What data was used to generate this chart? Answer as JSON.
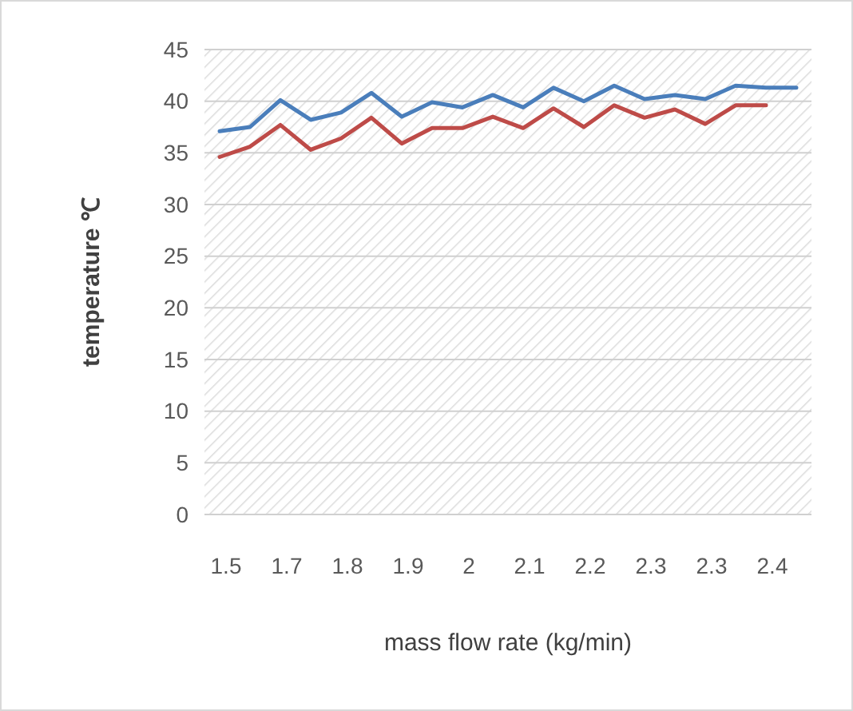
{
  "chart_data": {
    "type": "line",
    "xlabel": "mass flow rate (kg/min)",
    "ylabel": "temperature ℃",
    "categories": [
      "1.5",
      null,
      "1.7",
      null,
      "1.8",
      null,
      "1.9",
      null,
      "2",
      null,
      "2.1",
      null,
      "2.2",
      null,
      "2.3",
      null,
      "2.3",
      null,
      "2.4",
      null
    ],
    "series": [
      {
        "color": "#4a7ebb",
        "values": [
          37.1,
          37.5,
          40.1,
          38.2,
          38.9,
          40.8,
          38.5,
          39.9,
          39.4,
          40.6,
          39.4,
          41.3,
          40.0,
          41.5,
          40.2,
          40.6,
          40.2,
          41.5,
          41.3,
          41.3
        ]
      },
      {
        "color": "#be4b48",
        "values": [
          34.6,
          35.6,
          37.7,
          35.3,
          36.4,
          38.4,
          35.9,
          37.4,
          37.4,
          38.5,
          37.4,
          39.3,
          37.5,
          39.6,
          38.4,
          39.2,
          37.8,
          39.6,
          39.6,
          null
        ]
      }
    ],
    "ylim": [
      0,
      45
    ],
    "yticks": [
      0,
      5,
      10,
      15,
      20,
      25,
      30,
      35,
      40,
      45
    ],
    "grid": "y",
    "marker": "none",
    "line_style": "solid"
  }
}
